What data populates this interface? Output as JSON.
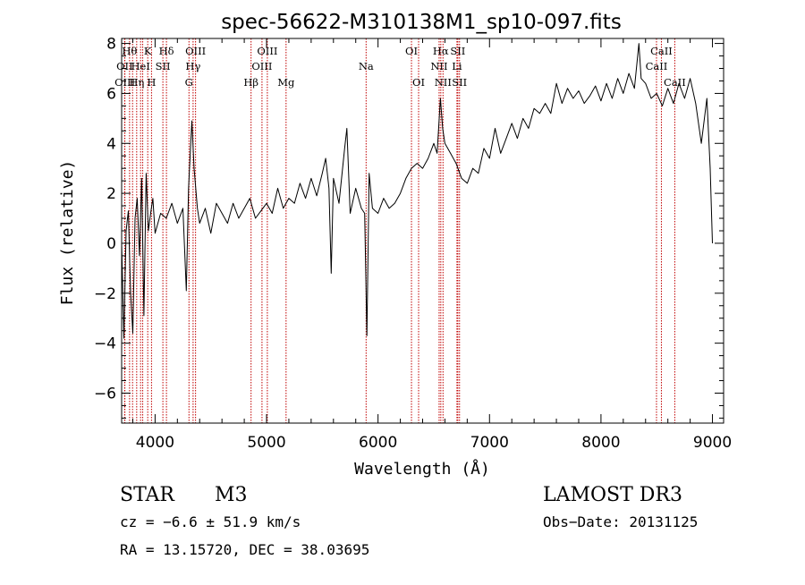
{
  "chart_data": {
    "type": "line",
    "title": "spec-56622-M310138M1_sp10-097.fits",
    "xlabel": "Wavelength (Å)",
    "ylabel": "Flux (relative)",
    "xlim": [
      3700,
      9100
    ],
    "ylim": [
      -7.2,
      8.2
    ],
    "xticks": [
      4000,
      5000,
      6000,
      7000,
      8000,
      9000
    ],
    "xtick_labels": [
      "4000",
      "5000",
      "6000",
      "7000",
      "8000",
      "9000"
    ],
    "yticks": [
      -6,
      -4,
      -2,
      0,
      2,
      4,
      6,
      8
    ],
    "ytick_labels": [
      "−6",
      "−4",
      "−2",
      "0",
      "2",
      "4",
      "6",
      "8"
    ],
    "series": [
      {
        "name": "spectrum",
        "x": [
          3700,
          3720,
          3740,
          3760,
          3780,
          3800,
          3820,
          3840,
          3860,
          3880,
          3900,
          3920,
          3940,
          3960,
          3980,
          4000,
          4050,
          4100,
          4150,
          4200,
          4250,
          4280,
          4300,
          4330,
          4350,
          4380,
          4400,
          4450,
          4500,
          4550,
          4600,
          4650,
          4700,
          4750,
          4800,
          4850,
          4900,
          4950,
          5000,
          5050,
          5100,
          5150,
          5200,
          5250,
          5300,
          5350,
          5400,
          5450,
          5500,
          5530,
          5560,
          5580,
          5600,
          5650,
          5700,
          5720,
          5750,
          5800,
          5850,
          5880,
          5900,
          5920,
          5950,
          6000,
          6050,
          6100,
          6150,
          6200,
          6250,
          6300,
          6350,
          6400,
          6450,
          6500,
          6530,
          6560,
          6580,
          6600,
          6650,
          6700,
          6750,
          6800,
          6850,
          6900,
          6950,
          7000,
          7050,
          7100,
          7150,
          7200,
          7250,
          7300,
          7350,
          7400,
          7450,
          7500,
          7550,
          7600,
          7650,
          7700,
          7750,
          7800,
          7850,
          7900,
          7950,
          8000,
          8050,
          8100,
          8150,
          8200,
          8250,
          8300,
          8340,
          8360,
          8400,
          8450,
          8500,
          8550,
          8600,
          8650,
          8700,
          8750,
          8800,
          8850,
          8900,
          8950,
          8980,
          9000
        ],
        "values": [
          0.0,
          -3.8,
          0.5,
          1.3,
          -2.0,
          -3.6,
          1.0,
          1.8,
          -0.5,
          2.6,
          -2.9,
          2.8,
          0.5,
          1.2,
          1.8,
          0.4,
          1.2,
          1.0,
          1.6,
          0.8,
          1.4,
          -1.9,
          2.2,
          4.9,
          3.0,
          1.4,
          0.8,
          1.4,
          0.4,
          1.6,
          1.2,
          0.8,
          1.6,
          1.0,
          1.4,
          1.8,
          1.0,
          1.3,
          1.6,
          1.2,
          2.2,
          1.4,
          1.8,
          1.6,
          2.4,
          1.8,
          2.6,
          1.9,
          2.8,
          3.4,
          2.2,
          -1.2,
          2.6,
          1.6,
          3.8,
          4.6,
          1.2,
          2.2,
          1.4,
          1.2,
          -3.7,
          2.8,
          1.4,
          1.2,
          1.8,
          1.4,
          1.6,
          2.0,
          2.6,
          3.0,
          3.2,
          3.0,
          3.4,
          4.0,
          3.6,
          5.8,
          4.6,
          4.0,
          3.6,
          3.2,
          2.6,
          2.4,
          3.0,
          2.8,
          3.8,
          3.4,
          4.6,
          3.6,
          4.2,
          4.8,
          4.2,
          5.0,
          4.6,
          5.4,
          5.2,
          5.6,
          5.2,
          6.4,
          5.6,
          6.2,
          5.8,
          6.1,
          5.6,
          5.9,
          6.3,
          5.7,
          6.4,
          5.8,
          6.6,
          6.0,
          6.8,
          6.2,
          8.0,
          6.6,
          6.4,
          5.8,
          6.0,
          5.5,
          6.2,
          5.6,
          6.4,
          5.8,
          6.6,
          5.6,
          4.0,
          5.8,
          3.0,
          0.0
        ]
      }
    ],
    "spectral_lines": [
      {
        "x": 3727,
        "label": "OII",
        "row": 1
      },
      {
        "x": 3729,
        "label": "OIII",
        "row": 2
      },
      {
        "x": 3771,
        "label": "Hθ",
        "row": 0
      },
      {
        "x": 3798,
        "label": "",
        "row": 0
      },
      {
        "x": 3835,
        "label": "Hη",
        "row": 2
      },
      {
        "x": 3870,
        "label": "HeI",
        "row": 1
      },
      {
        "x": 3889,
        "label": "",
        "row": 1
      },
      {
        "x": 3934,
        "label": "K",
        "row": 0
      },
      {
        "x": 3968,
        "label": "H",
        "row": 2
      },
      {
        "x": 4070,
        "label": "SII",
        "row": 1
      },
      {
        "x": 4102,
        "label": "Hδ",
        "row": 0
      },
      {
        "x": 4304,
        "label": "G",
        "row": 2
      },
      {
        "x": 4341,
        "label": "Hγ",
        "row": 1
      },
      {
        "x": 4363,
        "label": "OIII",
        "row": 0
      },
      {
        "x": 4861,
        "label": "Hβ",
        "row": 2
      },
      {
        "x": 4959,
        "label": "OIII",
        "row": 1
      },
      {
        "x": 5007,
        "label": "OIII",
        "row": 0
      },
      {
        "x": 5175,
        "label": "Mg",
        "row": 2
      },
      {
        "x": 5893,
        "label": "Na",
        "row": 1
      },
      {
        "x": 6300,
        "label": "OI",
        "row": 0
      },
      {
        "x": 6364,
        "label": "OI",
        "row": 2
      },
      {
        "x": 6548,
        "label": "NII",
        "row": 1
      },
      {
        "x": 6563,
        "label": "Hα",
        "row": 0
      },
      {
        "x": 6583,
        "label": "NII",
        "row": 2
      },
      {
        "x": 6708,
        "label": "Li",
        "row": 1
      },
      {
        "x": 6716,
        "label": "SII",
        "row": 0
      },
      {
        "x": 6731,
        "label": "SII",
        "row": 2
      },
      {
        "x": 8498,
        "label": "CaII",
        "row": 1
      },
      {
        "x": 8542,
        "label": "CaII",
        "row": 0
      },
      {
        "x": 8662,
        "label": "CaII",
        "row": 2
      }
    ]
  },
  "info": {
    "object_class": "STAR",
    "subclass": "M3",
    "survey": "LAMOST DR3",
    "cz": "cz = −6.6 ± 51.9 km/s",
    "obs_date": "Obs−Date: 20131125",
    "coords": "RA =  13.15720, DEC =  38.03695"
  },
  "colors": {
    "line_marker": "#c00000",
    "spectrum": "#000000",
    "axes": "#000000"
  }
}
